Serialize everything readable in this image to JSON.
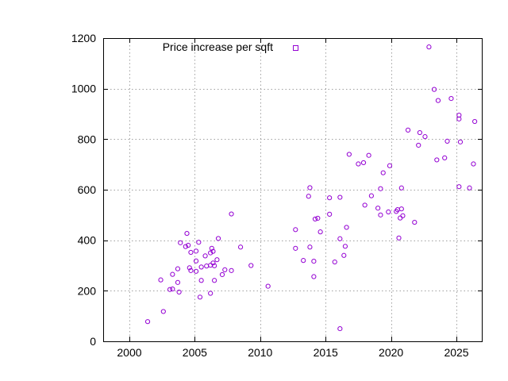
{
  "chart_data": {
    "type": "scatter",
    "title": "",
    "xlabel": "",
    "ylabel": "",
    "xlim": [
      1998,
      2027
    ],
    "ylim": [
      0,
      1200
    ],
    "x_ticks": [
      2000,
      2005,
      2010,
      2015,
      2020,
      2025
    ],
    "y_ticks": [
      0,
      200,
      400,
      600,
      800,
      1000,
      1200
    ],
    "grid": true,
    "legend_position": "top-left",
    "series": [
      {
        "name": "Price increase per sqft",
        "color": "#9400d3",
        "marker": "open-circle",
        "points": [
          [
            2001.4,
            78
          ],
          [
            2002.6,
            118
          ],
          [
            2002.4,
            243
          ],
          [
            2003.1,
            205
          ],
          [
            2003.3,
            207
          ],
          [
            2003.3,
            265
          ],
          [
            2003.7,
            233
          ],
          [
            2003.7,
            287
          ],
          [
            2003.8,
            195
          ],
          [
            2003.9,
            390
          ],
          [
            2004.3,
            375
          ],
          [
            2004.4,
            427
          ],
          [
            2004.5,
            380
          ],
          [
            2004.6,
            291
          ],
          [
            2004.7,
            352
          ],
          [
            2004.7,
            280
          ],
          [
            2005.1,
            357
          ],
          [
            2005.1,
            318
          ],
          [
            2005.1,
            277
          ],
          [
            2005.3,
            392
          ],
          [
            2005.4,
            175
          ],
          [
            2005.5,
            294
          ],
          [
            2005.5,
            241
          ],
          [
            2005.8,
            338
          ],
          [
            2005.9,
            298
          ],
          [
            2006.2,
            301
          ],
          [
            2006.2,
            190
          ],
          [
            2006.2,
            350
          ],
          [
            2006.3,
            368
          ],
          [
            2006.4,
            356
          ],
          [
            2006.4,
            310
          ],
          [
            2006.5,
            241
          ],
          [
            2006.5,
            299
          ],
          [
            2006.7,
            323
          ],
          [
            2006.8,
            407
          ],
          [
            2007.1,
            264
          ],
          [
            2007.3,
            283
          ],
          [
            2007.8,
            280
          ],
          [
            2007.8,
            504
          ],
          [
            2008.5,
            373
          ],
          [
            2009.3,
            300
          ],
          [
            2010.6,
            218
          ],
          [
            2012.7,
            368
          ],
          [
            2012.7,
            442
          ],
          [
            2013.3,
            320
          ],
          [
            2013.7,
            574
          ],
          [
            2013.8,
            608
          ],
          [
            2013.8,
            373
          ],
          [
            2014.1,
            317
          ],
          [
            2014.1,
            256
          ],
          [
            2014.2,
            484
          ],
          [
            2014.4,
            487
          ],
          [
            2014.6,
            433
          ],
          [
            2015.3,
            568
          ],
          [
            2015.3,
            503
          ],
          [
            2015.7,
            314
          ],
          [
            2016.1,
            50
          ],
          [
            2016.1,
            406
          ],
          [
            2016.1,
            570
          ],
          [
            2016.4,
            340
          ],
          [
            2016.5,
            376
          ],
          [
            2016.6,
            451
          ],
          [
            2016.8,
            740
          ],
          [
            2017.5,
            702
          ],
          [
            2017.9,
            707
          ],
          [
            2018.0,
            539
          ],
          [
            2018.3,
            736
          ],
          [
            2018.5,
            576
          ],
          [
            2019.0,
            527
          ],
          [
            2019.2,
            500
          ],
          [
            2019.2,
            604
          ],
          [
            2019.4,
            667
          ],
          [
            2019.8,
            512
          ],
          [
            2019.9,
            695
          ],
          [
            2020.4,
            514
          ],
          [
            2020.5,
            521
          ],
          [
            2020.6,
            409
          ],
          [
            2020.7,
            488
          ],
          [
            2020.8,
            524
          ],
          [
            2020.8,
            607
          ],
          [
            2020.9,
            497
          ],
          [
            2021.3,
            836
          ],
          [
            2021.8,
            471
          ],
          [
            2022.1,
            776
          ],
          [
            2022.2,
            826
          ],
          [
            2022.6,
            810
          ],
          [
            2022.9,
            1165
          ],
          [
            2023.3,
            997
          ],
          [
            2023.5,
            718
          ],
          [
            2023.6,
            953
          ],
          [
            2024.1,
            726
          ],
          [
            2024.3,
            792
          ],
          [
            2024.6,
            961
          ],
          [
            2025.2,
            880
          ],
          [
            2025.2,
            895
          ],
          [
            2025.2,
            612
          ],
          [
            2025.3,
            789
          ],
          [
            2026.0,
            607
          ],
          [
            2026.3,
            702
          ],
          [
            2026.4,
            870
          ]
        ]
      }
    ]
  }
}
